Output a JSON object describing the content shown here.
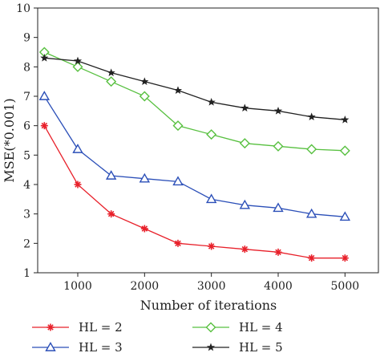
{
  "chart_data": {
    "type": "line",
    "xlabel": "Number of iterations",
    "ylabel": "MSE(*0.001)",
    "xlim": [
      400,
      5500
    ],
    "ylim": [
      1,
      10
    ],
    "xticks": [
      1000,
      2000,
      3000,
      4000,
      5000
    ],
    "yticks": [
      1,
      2,
      3,
      4,
      5,
      6,
      7,
      8,
      9,
      10
    ],
    "x": [
      500,
      1000,
      1500,
      2000,
      2500,
      3000,
      3500,
      4000,
      4500,
      5000
    ],
    "grid": false,
    "legend_position": "bottom",
    "series": [
      {
        "name": "HL = 2",
        "color": "#e8202a",
        "marker": "asterisk",
        "values": [
          6.0,
          4.0,
          3.0,
          2.5,
          2.0,
          1.9,
          1.8,
          1.7,
          1.5,
          1.5
        ]
      },
      {
        "name": "HL = 3",
        "color": "#2b4fb8",
        "marker": "triangle",
        "values": [
          7.0,
          5.2,
          4.3,
          4.2,
          4.1,
          3.5,
          3.3,
          3.2,
          3.0,
          2.9
        ]
      },
      {
        "name": "HL = 4",
        "color": "#58c040",
        "marker": "diamond",
        "values": [
          8.5,
          8.0,
          7.5,
          7.0,
          6.0,
          5.7,
          5.4,
          5.3,
          5.2,
          5.15
        ]
      },
      {
        "name": "HL = 5",
        "color": "#222222",
        "marker": "star",
        "values": [
          8.3,
          8.2,
          7.8,
          7.5,
          7.2,
          6.8,
          6.6,
          6.5,
          6.3,
          6.2
        ]
      }
    ]
  }
}
